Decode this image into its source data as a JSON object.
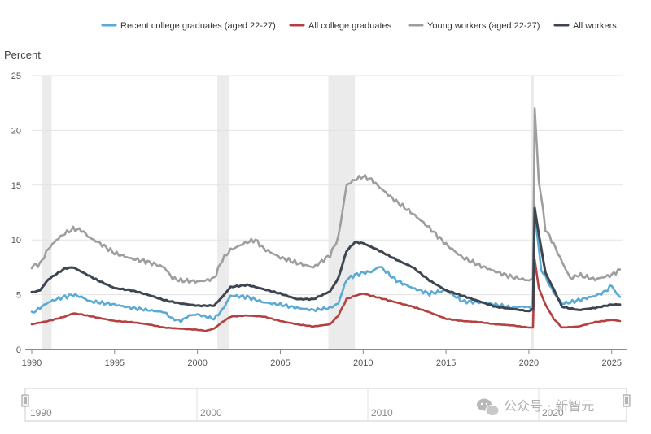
{
  "chart_data": {
    "type": "line",
    "ylabel": "Percent",
    "xlabel": "",
    "xlim": [
      1990,
      2025.7
    ],
    "ylim": [
      0,
      25
    ],
    "y_ticks": [
      "0",
      "5",
      "10",
      "15",
      "20",
      "25"
    ],
    "x_ticks": [
      "1990",
      "1995",
      "2000",
      "2005",
      "2010",
      "2015",
      "2020",
      "2025"
    ],
    "grid": "horizontal",
    "legend_position": "top",
    "recessions": [
      [
        1990.6,
        1991.2
      ],
      [
        2001.2,
        2001.9
      ],
      [
        2007.9,
        2009.5
      ],
      [
        2020.1,
        2020.3
      ]
    ],
    "series": [
      {
        "name": "Recent college graduates (aged 22-27)",
        "color": "#5aaad3",
        "x": [
          1990,
          1990.5,
          1991,
          1991.5,
          1992,
          1992.5,
          1993,
          1993.5,
          1994,
          1995,
          1996,
          1997,
          1998,
          1998.5,
          1999,
          1999.5,
          2000,
          2000.5,
          2001,
          2001.5,
          2002,
          2003,
          2004,
          2005,
          2006,
          2007,
          2008,
          2008.5,
          2009,
          2009.5,
          2010,
          2010.5,
          2011,
          2012,
          2013,
          2014,
          2015,
          2016,
          2017,
          2018,
          2019,
          2019.5,
          2020,
          2020.25,
          2020.33,
          2020.5,
          2020.75,
          2021,
          2021.5,
          2022,
          2022.5,
          2023,
          2023.5,
          2024,
          2024.5,
          2025,
          2025.3,
          2025.5
        ],
        "values": [
          3.3,
          3.8,
          4.3,
          4.6,
          4.8,
          5.0,
          4.8,
          4.4,
          4.3,
          4.1,
          3.8,
          3.6,
          3.4,
          2.8,
          2.6,
          3.1,
          3.2,
          3.0,
          2.8,
          3.6,
          4.9,
          4.8,
          4.3,
          4.1,
          3.8,
          3.6,
          3.8,
          4.2,
          6.4,
          6.8,
          7.0,
          7.1,
          7.6,
          6.3,
          5.6,
          5.1,
          5.4,
          4.4,
          4.3,
          4.1,
          3.8,
          3.9,
          3.9,
          3.5,
          13.4,
          10.5,
          7.2,
          6.6,
          5.2,
          4.2,
          4.3,
          4.5,
          4.7,
          4.9,
          5.2,
          5.8,
          5.1,
          4.8
        ]
      },
      {
        "name": "All college graduates",
        "color": "#b44040",
        "x": [
          1990,
          1991,
          1992,
          1992.5,
          1993,
          1994,
          1995,
          1996,
          1997,
          1998,
          1999,
          2000,
          2000.5,
          2001,
          2001.5,
          2002,
          2003,
          2004,
          2005,
          2006,
          2007,
          2008,
          2008.5,
          2009,
          2009.5,
          2010,
          2011,
          2012,
          2013,
          2014,
          2015,
          2016,
          2017,
          2018,
          2019,
          2020,
          2020.25,
          2020.35,
          2020.6,
          2021,
          2021.5,
          2022,
          2023,
          2024,
          2025,
          2025.5
        ],
        "values": [
          2.3,
          2.6,
          3.0,
          3.3,
          3.2,
          2.9,
          2.6,
          2.5,
          2.3,
          2.0,
          1.9,
          1.8,
          1.7,
          1.9,
          2.5,
          3.0,
          3.1,
          3.0,
          2.6,
          2.3,
          2.1,
          2.3,
          3.1,
          4.6,
          4.9,
          5.1,
          4.7,
          4.3,
          3.9,
          3.4,
          2.8,
          2.6,
          2.5,
          2.3,
          2.2,
          2.0,
          2.0,
          8.2,
          5.6,
          4.1,
          2.8,
          2.0,
          2.1,
          2.5,
          2.7,
          2.6
        ]
      },
      {
        "name": "Young workers (aged 22-27)",
        "color": "#9e9e9e",
        "x": [
          1990,
          1990.5,
          1991,
          1991.5,
          1992,
          1992.5,
          1993,
          1993.5,
          1994,
          1995,
          1996,
          1997,
          1998,
          1998.5,
          1999,
          2000,
          2000.5,
          2001,
          2001.5,
          2002,
          2003,
          2003.5,
          2004,
          2005,
          2006,
          2007,
          2008,
          2008.5,
          2009,
          2009.5,
          2010,
          2010.5,
          2011,
          2012,
          2013,
          2014,
          2015,
          2016,
          2017,
          2018,
          2019,
          2020,
          2020.25,
          2020.35,
          2020.6,
          2021,
          2021.5,
          2022,
          2022.5,
          2023,
          2024,
          2025,
          2025.5
        ],
        "values": [
          7.6,
          7.8,
          9.2,
          10.0,
          10.6,
          11.0,
          10.9,
          10.2,
          9.8,
          8.8,
          8.3,
          8.0,
          7.5,
          6.5,
          6.3,
          6.2,
          6.3,
          6.5,
          8.2,
          9.1,
          9.8,
          10.0,
          9.2,
          8.4,
          7.9,
          7.5,
          8.6,
          10.2,
          15.0,
          15.5,
          15.8,
          15.5,
          14.8,
          13.5,
          12.4,
          11.1,
          9.6,
          8.4,
          7.7,
          7.1,
          6.6,
          6.3,
          6.5,
          22.0,
          15.5,
          11.0,
          9.6,
          8.0,
          6.5,
          6.8,
          6.4,
          6.8,
          7.3
        ]
      },
      {
        "name": "All workers",
        "color": "#3d4650",
        "x": [
          1990,
          1990.5,
          1991,
          1991.5,
          1992,
          1992.5,
          1993,
          1994,
          1995,
          1996,
          1997,
          1998,
          1999,
          2000,
          2001,
          2001.5,
          2002,
          2003,
          2004,
          2005,
          2006,
          2007,
          2008,
          2008.5,
          2009,
          2009.5,
          2010,
          2011,
          2012,
          2013,
          2014,
          2015,
          2016,
          2017,
          2018,
          2019,
          2020,
          2020.25,
          2020.35,
          2020.6,
          2021,
          2021.5,
          2022,
          2023,
          2024,
          2025,
          2025.5
        ],
        "values": [
          5.2,
          5.4,
          6.4,
          6.9,
          7.4,
          7.5,
          7.1,
          6.3,
          5.6,
          5.4,
          5.0,
          4.5,
          4.2,
          4.0,
          4.0,
          4.8,
          5.7,
          5.9,
          5.5,
          5.1,
          4.6,
          4.6,
          5.3,
          6.5,
          9.0,
          9.8,
          9.7,
          9.0,
          8.2,
          7.5,
          6.3,
          5.4,
          4.9,
          4.4,
          3.9,
          3.7,
          3.5,
          3.7,
          12.9,
          10.5,
          7.0,
          5.5,
          3.9,
          3.6,
          3.8,
          4.1,
          4.1
        ]
      }
    ]
  },
  "navigator": {
    "labels": [
      "1990",
      "2000",
      "2010",
      "2020"
    ]
  },
  "watermark": {
    "text": "公众号 · 新智元"
  }
}
